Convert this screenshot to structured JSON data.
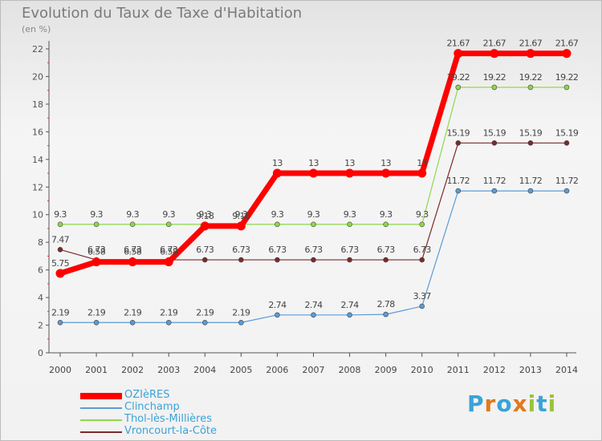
{
  "title": "Evolution du Taux de Taxe d'Habitation",
  "unit_label": "(en %)",
  "brand": {
    "letters": [
      "P",
      "r",
      "o",
      "x",
      "i",
      "t",
      "i"
    ],
    "colors": [
      "#3aa3d8",
      "#e07a1f",
      "#3aa3d8",
      "#e07a1f",
      "#9bc23a",
      "#3aa3d8",
      "#9bc23a"
    ]
  },
  "chart_data": {
    "type": "line",
    "x": [
      "2000",
      "2001",
      "2002",
      "2003",
      "2004",
      "2005",
      "2006",
      "2007",
      "2008",
      "2009",
      "2010",
      "2011",
      "2012",
      "2013",
      "2014"
    ],
    "ylim": [
      0,
      22
    ],
    "yticks": [
      0,
      2,
      4,
      6,
      8,
      10,
      12,
      14,
      16,
      18,
      20,
      22
    ],
    "ytick_labels": [
      "0",
      "2",
      "4",
      "6",
      "8",
      "10",
      "12",
      "14",
      "16",
      "18",
      "20",
      "22"
    ],
    "grid": false,
    "legend_position": "bottom-left",
    "series": [
      {
        "name": "Vroncourt-la-Côte",
        "color": "#7a2a2a",
        "values": [
          7.47,
          6.73,
          6.73,
          6.73,
          6.73,
          6.73,
          6.73,
          6.73,
          6.73,
          6.73,
          6.73,
          15.19,
          15.19,
          15.19,
          15.19
        ],
        "labels": [
          "7.47",
          "6.73",
          "6.73",
          "6.73",
          "6.73",
          "6.73",
          "6.73",
          "6.73",
          "6.73",
          "6.73",
          "6.73",
          "15.19",
          "15.19",
          "15.19",
          "15.19"
        ]
      },
      {
        "name": "Thol-lès-Millières",
        "color": "#8ed84a",
        "values": [
          9.3,
          9.3,
          9.3,
          9.3,
          9.3,
          9.3,
          9.3,
          9.3,
          9.3,
          9.3,
          9.3,
          19.22,
          19.22,
          19.22,
          19.22
        ],
        "labels": [
          "9.3",
          "9.3",
          "9.3",
          "9.3",
          "9.3",
          "9.3",
          "9.3",
          "9.3",
          "9.3",
          "9.3",
          "9.3",
          "19.22",
          "19.22",
          "19.22",
          "19.22"
        ]
      },
      {
        "name": "Clinchamp",
        "color": "#5b9bd5",
        "values": [
          2.19,
          2.19,
          2.19,
          2.19,
          2.19,
          2.19,
          2.74,
          2.74,
          2.74,
          2.78,
          3.37,
          11.72,
          11.72,
          11.72,
          11.72
        ],
        "labels": [
          "2.19",
          "2.19",
          "2.19",
          "2.19",
          "2.19",
          "2.19",
          "2.74",
          "2.74",
          "2.74",
          "2.78",
          "3.37",
          "11.72",
          "11.72",
          "11.72",
          "11.72"
        ]
      },
      {
        "name": "OZIèRES",
        "color": "#ff0000",
        "values": [
          5.75,
          6.58,
          6.58,
          6.58,
          9.18,
          9.18,
          13,
          13,
          13,
          13,
          13,
          21.67,
          21.67,
          21.67,
          21.67
        ],
        "labels": [
          "5.75",
          "6.58",
          "6.58",
          "6.58",
          "9.18",
          "9.18",
          "13",
          "13",
          "13",
          "13",
          "13",
          "21.67",
          "21.67",
          "21.67",
          "21.67"
        ]
      }
    ],
    "legend_order": [
      "OZIèRES",
      "Clinchamp",
      "Thol-lès-Millières",
      "Vroncourt-la-Côte"
    ]
  }
}
